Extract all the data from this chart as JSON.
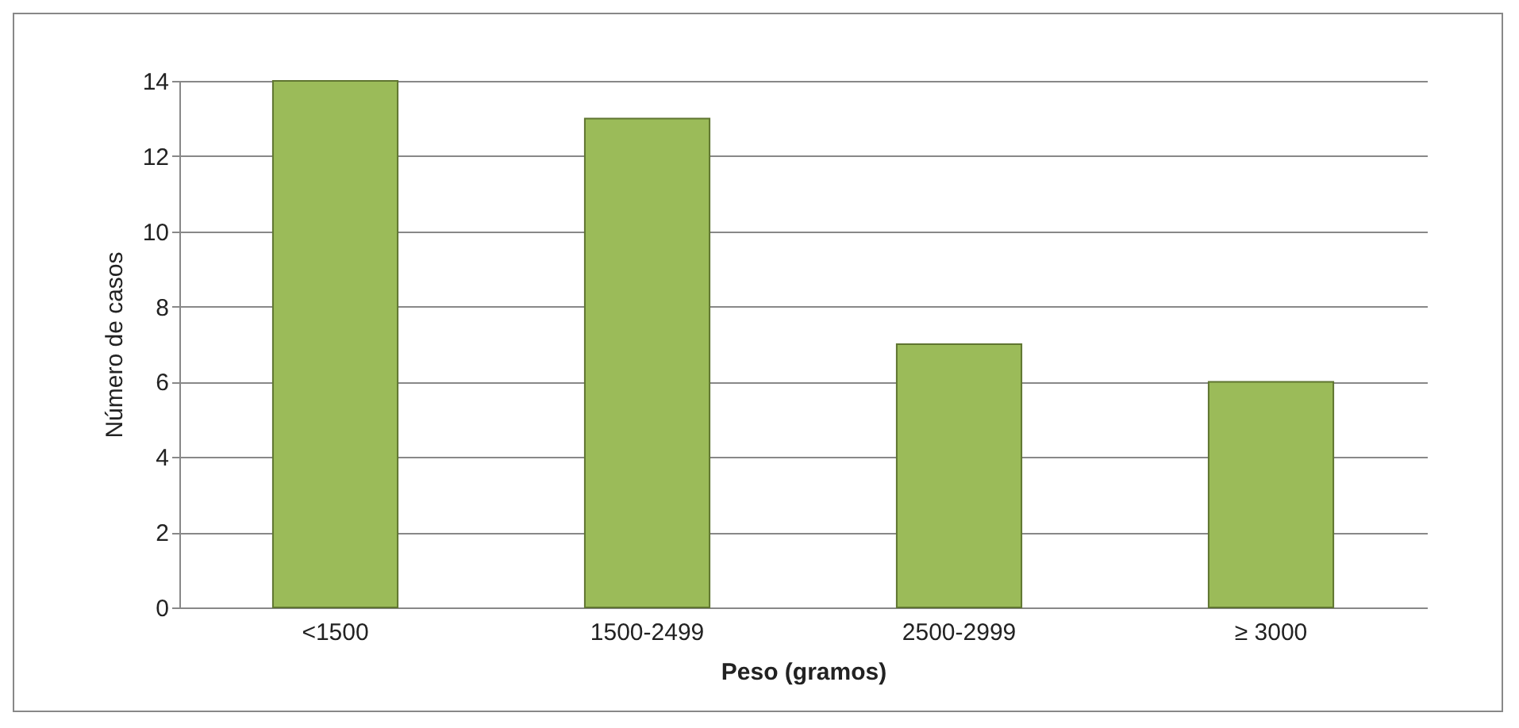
{
  "chart_data": {
    "type": "bar",
    "xlabel": "Peso (gramos)",
    "ylabel": "Número de casos",
    "categories": [
      "<1500",
      "1500-2499",
      "2500-2999",
      "≥ 3000"
    ],
    "values": [
      14,
      13,
      7,
      6
    ],
    "color": "#9bbb59",
    "ylim": [
      0,
      14
    ],
    "yticks": [
      0,
      2,
      4,
      6,
      8,
      10,
      12,
      14
    ],
    "grid": "y"
  }
}
